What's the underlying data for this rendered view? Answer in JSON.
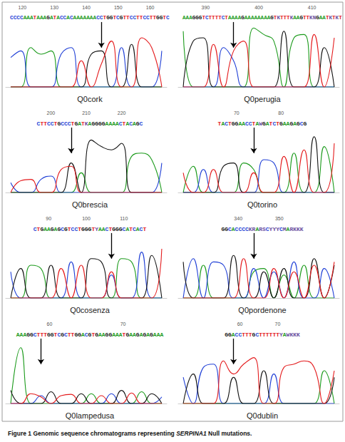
{
  "caption_label": "Figure 1",
  "caption": "Genomic sequence chromatograms representing SERPINA1 Null mutations.",
  "caption_italic": "SERPINA1",
  "chart_data": [
    {
      "type": "line",
      "title": "Q0cork",
      "sequence": "CCCCAAATAAAGATACCACAAAAAAACCTGGTCGTTCCTTCCTTGGTC",
      "positions": [
        120,
        130,
        140,
        150,
        160
      ],
      "arrow_at": 9,
      "ylim": [
        0,
        100
      ],
      "tick_labels": false,
      "series": [
        {
          "name": "A",
          "color": "#1a9a1a",
          "values": [
            0,
            0,
            60,
            50,
            55,
            0,
            0,
            0,
            0,
            0,
            0,
            0,
            0,
            0,
            0,
            0
          ]
        },
        {
          "name": "C",
          "color": "#1f3fd6",
          "values": [
            45,
            55,
            0,
            0,
            0,
            50,
            60,
            0,
            0,
            0,
            0,
            60,
            0,
            0,
            0,
            55
          ]
        },
        {
          "name": "G",
          "color": "#111111",
          "values": [
            0,
            0,
            0,
            0,
            0,
            0,
            0,
            0,
            50,
            55,
            0,
            0,
            65,
            0,
            0,
            0
          ]
        },
        {
          "name": "T",
          "color": "#e41a1c",
          "values": [
            0,
            0,
            0,
            0,
            0,
            0,
            0,
            40,
            0,
            35,
            70,
            0,
            0,
            75,
            60,
            0
          ]
        }
      ]
    },
    {
      "type": "line",
      "title": "Q0perugia",
      "sequence": "AAAGGGTCTTTTCTAAAAGAAAAAAAAGTKTTTKAAGTTKNGAATKTKT",
      "positions": [
        390,
        400,
        410
      ],
      "arrow_at": 5,
      "ylim": [
        0,
        100
      ],
      "tick_labels": false,
      "series": [
        {
          "name": "A",
          "color": "#1a9a1a",
          "values": [
            85,
            0,
            0,
            0,
            0,
            0,
            0,
            90,
            80,
            70,
            0,
            75,
            80,
            0,
            0,
            0
          ]
        },
        {
          "name": "C",
          "color": "#1f3fd6",
          "values": [
            0,
            0,
            0,
            0,
            60,
            40,
            0,
            0,
            0,
            0,
            0,
            0,
            0,
            0,
            0,
            0
          ]
        },
        {
          "name": "G",
          "color": "#111111",
          "values": [
            0,
            70,
            75,
            0,
            0,
            0,
            0,
            0,
            0,
            0,
            85,
            0,
            0,
            0,
            60,
            0
          ]
        },
        {
          "name": "T",
          "color": "#e41a1c",
          "values": [
            0,
            0,
            0,
            65,
            0,
            55,
            70,
            0,
            0,
            0,
            0,
            0,
            0,
            80,
            0,
            75
          ]
        }
      ]
    },
    {
      "type": "line",
      "title": "Q0brescia",
      "sequence": "CTTCCTGCCCTGATKAGGGGAAAACTACAGC",
      "positions": [
        200,
        210,
        220
      ],
      "arrow_at": 6,
      "ylim": [
        0,
        100
      ],
      "tick_labels": false,
      "series": [
        {
          "name": "A",
          "color": "#1a9a1a",
          "values": [
            0,
            0,
            0,
            0,
            0,
            0,
            0,
            30,
            0,
            0,
            0,
            0,
            55,
            60,
            50,
            0
          ]
        },
        {
          "name": "C",
          "color": "#1f3fd6",
          "values": [
            15,
            0,
            0,
            20,
            25,
            0,
            0,
            0,
            0,
            0,
            0,
            0,
            0,
            0,
            0,
            45
          ]
        },
        {
          "name": "G",
          "color": "#111111",
          "values": [
            0,
            0,
            0,
            0,
            0,
            0,
            45,
            0,
            80,
            70,
            65,
            75,
            0,
            0,
            0,
            0
          ]
        },
        {
          "name": "T",
          "color": "#e41a1c",
          "values": [
            0,
            18,
            20,
            0,
            0,
            35,
            40,
            0,
            0,
            0,
            0,
            0,
            0,
            0,
            0,
            0
          ]
        }
      ]
    },
    {
      "type": "line",
      "title": "Q0torino",
      "sequence": "TACTGGAACCTAWGATCTGAAGAGCG",
      "positions": [
        70,
        80
      ],
      "arrow_at": 7,
      "ylim": [
        0,
        100
      ],
      "tick_labels": false,
      "series": [
        {
          "name": "A",
          "color": "#1a9a1a",
          "values": [
            0,
            40,
            0,
            0,
            0,
            0,
            45,
            35,
            0,
            0,
            0,
            60,
            0,
            0,
            70,
            0
          ]
        },
        {
          "name": "C",
          "color": "#1f3fd6",
          "values": [
            0,
            0,
            35,
            0,
            0,
            0,
            0,
            0,
            50,
            45,
            0,
            0,
            0,
            0,
            0,
            0
          ]
        },
        {
          "name": "G",
          "color": "#111111",
          "values": [
            0,
            0,
            0,
            0,
            40,
            45,
            0,
            0,
            0,
            0,
            0,
            0,
            0,
            85,
            0,
            0
          ]
        },
        {
          "name": "T",
          "color": "#e41a1c",
          "values": [
            30,
            0,
            0,
            35,
            0,
            0,
            0,
            30,
            0,
            0,
            55,
            0,
            65,
            0,
            0,
            75
          ]
        }
      ]
    },
    {
      "type": "line",
      "title": "Q0cosenza",
      "sequence": "CTGAAGAGCGTCCTGGGTYAACTGGGCATCACT",
      "positions": [
        90,
        100,
        110
      ],
      "arrow_at": 10,
      "ylim": [
        0,
        100
      ],
      "tick_labels": false,
      "series": [
        {
          "name": "A",
          "color": "#1a9a1a",
          "values": [
            0,
            0,
            50,
            45,
            0,
            0,
            0,
            0,
            0,
            0,
            0,
            60,
            55,
            0,
            0,
            0
          ]
        },
        {
          "name": "C",
          "color": "#1f3fd6",
          "values": [
            40,
            0,
            0,
            0,
            0,
            0,
            55,
            0,
            0,
            0,
            35,
            0,
            0,
            70,
            0,
            0
          ]
        },
        {
          "name": "G",
          "color": "#111111",
          "values": [
            0,
            45,
            0,
            0,
            50,
            0,
            0,
            0,
            60,
            55,
            0,
            0,
            0,
            0,
            65,
            0
          ]
        },
        {
          "name": "T",
          "color": "#e41a1c",
          "values": [
            0,
            0,
            0,
            0,
            0,
            45,
            0,
            50,
            0,
            0,
            40,
            0,
            0,
            0,
            0,
            75
          ]
        }
      ]
    },
    {
      "type": "line",
      "title": "Q0pordenone",
      "sequence": "GGCACCCCKRARSCYYYCMARKKK",
      "positions": [
        340,
        350
      ],
      "arrow_at": 7,
      "ylim": [
        0,
        100
      ],
      "tick_labels": false,
      "series": [
        {
          "name": "A",
          "color": "#1a9a1a",
          "values": [
            0,
            0,
            50,
            0,
            0,
            0,
            0,
            40,
            45,
            0,
            35,
            0,
            50,
            0,
            0,
            0
          ]
        },
        {
          "name": "C",
          "color": "#1f3fd6",
          "values": [
            0,
            60,
            0,
            55,
            50,
            0,
            0,
            45,
            0,
            40,
            0,
            55,
            0,
            0,
            45,
            0
          ]
        },
        {
          "name": "G",
          "color": "#111111",
          "values": [
            55,
            0,
            0,
            0,
            0,
            65,
            0,
            0,
            40,
            0,
            45,
            0,
            0,
            60,
            0,
            50
          ]
        },
        {
          "name": "T",
          "color": "#e41a1c",
          "values": [
            0,
            0,
            0,
            0,
            0,
            0,
            60,
            0,
            0,
            45,
            0,
            40,
            0,
            50,
            0,
            55
          ]
        }
      ]
    },
    {
      "type": "line",
      "title": "Q0lampedusa",
      "sequence": "AAAGGCTTTGGTCGCTTGGACGTGAAGGAAATGAAGAGAGAAA",
      "positions": [
        60,
        70
      ],
      "arrow_at": 3,
      "ylim": [
        0,
        100
      ],
      "tick_labels": false,
      "series": [
        {
          "name": "A",
          "color": "#1a9a1a",
          "values": [
            0,
            85,
            0,
            0,
            0,
            0,
            0,
            0,
            15,
            0,
            0,
            0,
            0,
            18,
            0,
            0
          ]
        },
        {
          "name": "C",
          "color": "#1f3fd6",
          "values": [
            0,
            0,
            0,
            12,
            0,
            0,
            0,
            0,
            0,
            0,
            15,
            0,
            0,
            0,
            0,
            10
          ]
        },
        {
          "name": "G",
          "color": "#111111",
          "values": [
            20,
            0,
            0,
            0,
            18,
            0,
            0,
            15,
            0,
            0,
            0,
            20,
            0,
            0,
            15,
            0
          ]
        },
        {
          "name": "T",
          "color": "#e41a1c",
          "values": [
            0,
            0,
            15,
            10,
            0,
            12,
            14,
            0,
            0,
            12,
            0,
            0,
            16,
            0,
            0,
            0
          ]
        }
      ]
    },
    {
      "type": "line",
      "title": "Q0dublin",
      "sequence": "GGACCTTTGCTTTTTTYAWKKK",
      "positions": [
        60,
        70
      ],
      "arrow_at": 5,
      "ylim": [
        0,
        100
      ],
      "tick_labels": false,
      "series": [
        {
          "name": "A",
          "color": "#1a9a1a",
          "values": [
            0,
            0,
            0,
            0,
            0,
            0,
            0,
            0,
            0,
            0,
            0,
            0,
            0,
            0,
            50,
            0
          ]
        },
        {
          "name": "C",
          "color": "#1f3fd6",
          "values": [
            40,
            0,
            55,
            60,
            0,
            0,
            0,
            0,
            0,
            45,
            0,
            0,
            0,
            0,
            0,
            0
          ]
        },
        {
          "name": "G",
          "color": "#111111",
          "values": [
            0,
            45,
            0,
            0,
            0,
            40,
            0,
            0,
            50,
            0,
            0,
            0,
            0,
            0,
            0,
            40
          ]
        },
        {
          "name": "T",
          "color": "#e41a1c",
          "values": [
            0,
            0,
            0,
            0,
            65,
            45,
            60,
            70,
            0,
            0,
            55,
            60,
            65,
            55,
            0,
            50
          ]
        }
      ]
    }
  ]
}
